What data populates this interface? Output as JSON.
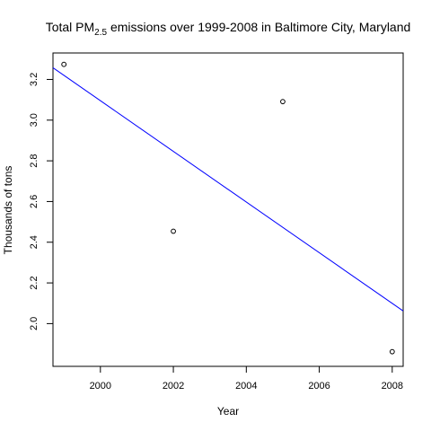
{
  "chart_data": {
    "type": "scatter",
    "title": {
      "prefix": "Total PM",
      "subscript": "2.5",
      "suffix": "  emissions over 1999-2008 in Baltimore City, Maryland"
    },
    "xlabel": "Year",
    "ylabel": "Thousands of tons",
    "xlim": [
      1998.7,
      2008.3
    ],
    "ylim": [
      1.79,
      3.33
    ],
    "x_ticks": [
      2000,
      2002,
      2004,
      2006,
      2008
    ],
    "y_ticks": [
      2.0,
      2.2,
      2.4,
      2.6,
      2.8,
      3.0,
      3.2
    ],
    "y_tick_labels": [
      "2.0",
      "2.2",
      "2.4",
      "2.6",
      "2.8",
      "3.0",
      "3.2"
    ],
    "points": [
      {
        "x": 1999,
        "y": 3.274
      },
      {
        "x": 2002,
        "y": 2.454
      },
      {
        "x": 2005,
        "y": 3.091
      },
      {
        "x": 2008,
        "y": 1.862
      }
    ],
    "fit_line": {
      "color": "#0000ff",
      "intercept_at_1999": 3.22,
      "slope_per_year": -0.1245
    },
    "point_color": "#000000",
    "grid": false
  }
}
